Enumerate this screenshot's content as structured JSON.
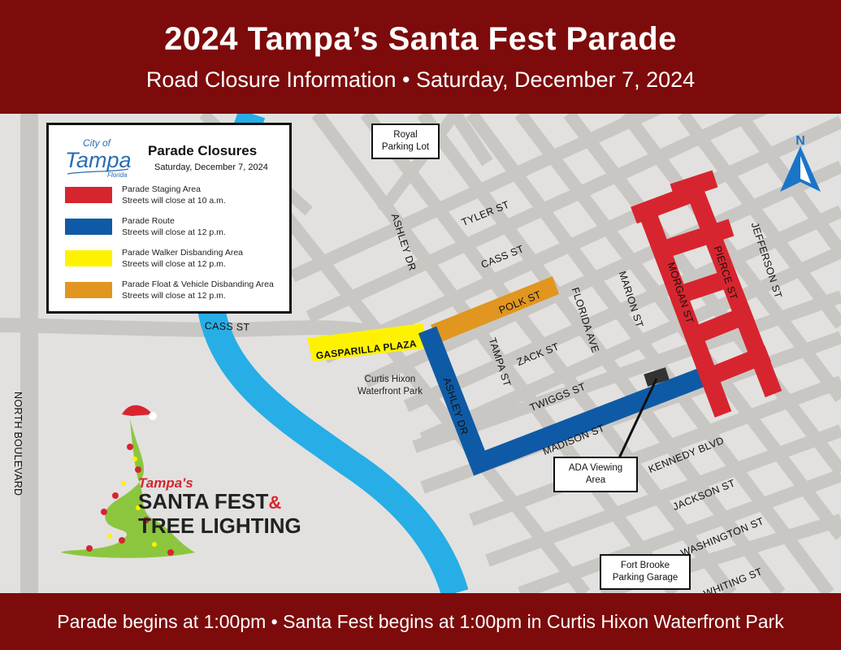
{
  "header": {
    "title": "2024 Tampa’s Santa Fest Parade",
    "subtitle": "Road Closure Information  •  Saturday, December 7, 2024"
  },
  "legend": {
    "logo_text_top": "City of",
    "logo_text_main": "Tampa",
    "logo_text_sub": "Florida",
    "title": "Parade Closures",
    "date": "Saturday, December 7, 2024",
    "items": [
      {
        "name": "Parade Staging Area",
        "time": "Streets will close at 10 a.m.",
        "color": "#d7252f"
      },
      {
        "name": "Parade Route",
        "time": "Streets will close at 12 p.m.",
        "color": "#0f5aa6"
      },
      {
        "name": "Parade Walker Disbanding Area",
        "time": "Streets will close at 12 p.m.",
        "color": "#fff200"
      },
      {
        "name": "Parade Float & Vehicle Disbanding Area",
        "time": "Streets will close at 12 p.m.",
        "color": "#e1961f"
      }
    ]
  },
  "places": {
    "royal_line1": "Royal",
    "royal_line2": "Parking Lot",
    "ada_line1": "ADA Viewing",
    "ada_line2": "Area",
    "fortbrooke_line1": "Fort Brooke",
    "fortbrooke_line2": "Parking Garage",
    "park_line1": "Curtis Hixon",
    "park_line2": "Waterfront Park",
    "gasparilla": "GASPARILLA PLAZA"
  },
  "streets": {
    "tyler": "TYLER ST",
    "cass_upper": "CASS ST",
    "cass_left": "CASS ST",
    "polk": "POLK ST",
    "ashley_upper": "ASHLEY DR",
    "ashley_lower": "ASHLEY DR",
    "tampa": "TAMPA ST",
    "zack": "ZACK ST",
    "florida": "FLORIDA AVE",
    "marion": "MARION ST",
    "morgan": "MORGAN ST",
    "pierce": "PIERCE ST",
    "jefferson": "JEFFERSON ST",
    "twiggs": "TWIGGS ST",
    "madison": "MADISON ST",
    "kennedy": "KENNEDY BLVD",
    "jackson": "JACKSON ST",
    "washington": "WASHINGTON ST",
    "whiting": "WHITING ST",
    "north_blvd": "NORTH BOULEVARD"
  },
  "compass": {
    "letter": "N",
    "color": "#1a75c9"
  },
  "event_logo": {
    "line1": "Tampa's",
    "line2": "SANTA FEST",
    "amp": "&",
    "line3": "TREE LIGHTING"
  },
  "footer": {
    "text": "Parade begins at 1:00pm • Santa Fest begins at 1:00pm in Curtis Hixon Waterfront Park"
  },
  "colors": {
    "banner": "#7d0b0b",
    "river": "#27aee6",
    "road": "#c9c7c3",
    "staging": "#d7252f",
    "route": "#0f5aa6",
    "walker": "#fff200",
    "float": "#e1961f"
  }
}
